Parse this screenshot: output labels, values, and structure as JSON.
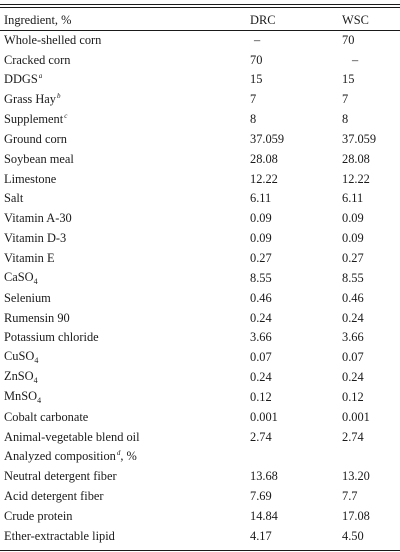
{
  "header": {
    "col_ingredient": "Ingredient, %",
    "col_drc": "DRC",
    "col_wsc": "WSC"
  },
  "rows": [
    {
      "name": "Whole-shelled corn",
      "drc": "–",
      "wsc": "70"
    },
    {
      "name": "Cracked corn",
      "drc": "70",
      "wsc": "–"
    },
    {
      "name": "DDGS",
      "note": "a",
      "drc": "15",
      "wsc": "15"
    },
    {
      "name": "Grass Hay",
      "note": "b",
      "drc": "7",
      "wsc": "7"
    },
    {
      "name": "Supplement",
      "note": "c",
      "drc": "8",
      "wsc": "8"
    },
    {
      "name": "Ground corn",
      "drc": "37.059",
      "wsc": "37.059"
    },
    {
      "name": "Soybean meal",
      "drc": "28.08",
      "wsc": "28.08"
    },
    {
      "name": "Limestone",
      "drc": "12.22",
      "wsc": "12.22"
    },
    {
      "name": "Salt",
      "drc": "6.11",
      "wsc": "6.11"
    },
    {
      "name": "Vitamin A-30",
      "drc": "0.09",
      "wsc": "0.09"
    },
    {
      "name": "Vitamin D-3",
      "drc": "0.09",
      "wsc": "0.09"
    },
    {
      "name": "Vitamin E",
      "drc": "0.27",
      "wsc": "0.27"
    },
    {
      "name": "CaSO",
      "sub": "4",
      "drc": "8.55",
      "wsc": "8.55"
    },
    {
      "name": "Selenium",
      "drc": "0.46",
      "wsc": "0.46"
    },
    {
      "name": "Rumensin 90",
      "drc": "0.24",
      "wsc": "0.24"
    },
    {
      "name": "Potassium chloride",
      "drc": "3.66",
      "wsc": "3.66"
    },
    {
      "name": "CuSO",
      "sub": "4",
      "drc": "0.07",
      "wsc": "0.07"
    },
    {
      "name": "ZnSO",
      "sub": "4",
      "drc": "0.24",
      "wsc": "0.24"
    },
    {
      "name": "MnSO",
      "sub": "4",
      "drc": "0.12",
      "wsc": "0.12"
    },
    {
      "name": "Cobalt carbonate",
      "drc": "0.001",
      "wsc": "0.001"
    },
    {
      "name": "Animal-vegetable blend oil",
      "drc": "2.74",
      "wsc": "2.74"
    },
    {
      "name": "Analyzed composition",
      "note": "d",
      "suffix": ", %",
      "drc": "",
      "wsc": ""
    },
    {
      "name": "Neutral detergent fiber",
      "drc": "13.68",
      "wsc": "13.20"
    },
    {
      "name": "Acid detergent fiber",
      "drc": "7.69",
      "wsc": "7.7"
    },
    {
      "name": "Crude protein",
      "drc": "14.84",
      "wsc": "17.08"
    },
    {
      "name": "Ether-extractable lipid",
      "drc": "4.17",
      "wsc": "4.50"
    }
  ]
}
